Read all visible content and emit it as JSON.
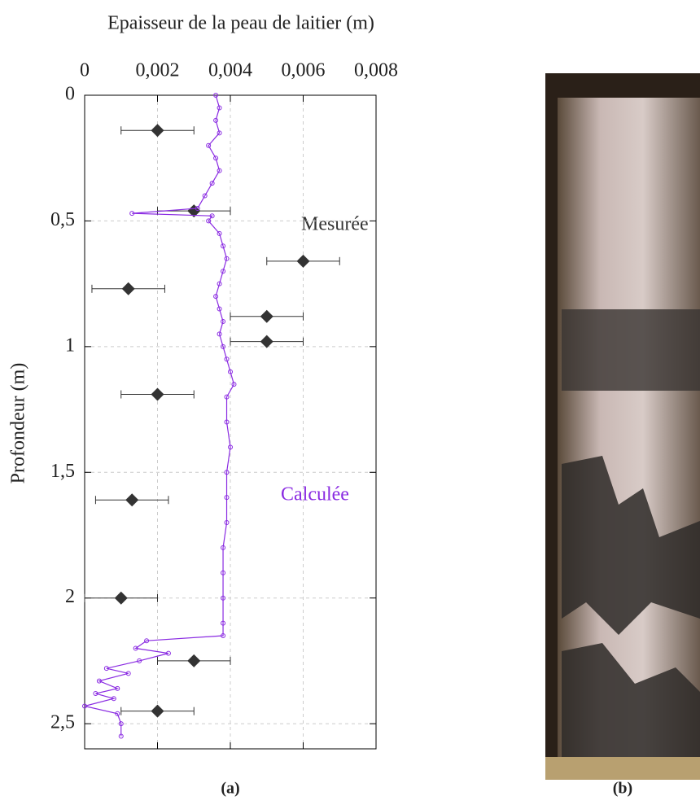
{
  "chart_data": {
    "type": "profile",
    "x_label": "Epaisseur de la peau de laitier (m)",
    "y_label": "Profondeur (m)",
    "xlim": [
      0,
      0.008
    ],
    "ylim": [
      0,
      2.6
    ],
    "xticks": [
      0,
      {
        "value": 0.002,
        "label": "0,002"
      },
      {
        "value": 0.004,
        "label": "0,004"
      },
      {
        "value": 0.006,
        "label": "0,006"
      },
      {
        "value": 0.008,
        "label": "0,008"
      }
    ],
    "yticks": [
      0,
      {
        "value": 0.5,
        "label": "0,5"
      },
      1,
      {
        "value": 1.5,
        "label": "1,5"
      },
      2,
      {
        "value": 2.5,
        "label": "2,5"
      }
    ],
    "grid": true,
    "y_inverted": true,
    "series": [
      {
        "name": "Mesurée",
        "color": "#333333",
        "style": "diamond",
        "x": [
          0.002,
          0.003,
          0.006,
          0.0012,
          0.005,
          0.005,
          0.002,
          0.0013,
          0.001,
          0.003,
          0.002
        ],
        "y": [
          0.14,
          0.46,
          0.66,
          0.77,
          0.88,
          0.98,
          1.19,
          1.61,
          2.0,
          2.25,
          2.45
        ],
        "errors": [
          0.001,
          0.001,
          0.001,
          0.001,
          0.001,
          0.001,
          0.001,
          0.001,
          0.001,
          0.001,
          0.001
        ]
      },
      {
        "name": "Calculée",
        "color": "#8a2be2",
        "style": "line",
        "x": [
          0.0036,
          0.0037,
          0.0036,
          0.0037,
          0.0034,
          0.0036,
          0.0037,
          0.0035,
          0.0033,
          0.0031,
          0.0013,
          0.0035,
          0.0034,
          0.0037,
          0.0038,
          0.0039,
          0.0038,
          0.0037,
          0.0036,
          0.0037,
          0.0038,
          0.0037,
          0.0038,
          0.0039,
          0.004,
          0.0041,
          0.0039,
          0.0039,
          0.004,
          0.0039,
          0.0039,
          0.0039,
          0.0038,
          0.0038,
          0.0038,
          0.0038,
          0.0038,
          0.0017,
          0.0014,
          0.0023,
          0.0015,
          0.0006,
          0.0012,
          0.0004,
          0.0009,
          0.0003,
          0.0008,
          0.0,
          0.0009,
          0.001,
          0.001
        ],
        "y": [
          0,
          0.05,
          0.1,
          0.15,
          0.2,
          0.25,
          0.3,
          0.35,
          0.4,
          0.45,
          0.47,
          0.48,
          0.5,
          0.55,
          0.6,
          0.65,
          0.7,
          0.75,
          0.8,
          0.85,
          0.9,
          0.95,
          1.0,
          1.05,
          1.1,
          1.15,
          1.2,
          1.3,
          1.4,
          1.5,
          1.6,
          1.7,
          1.8,
          1.9,
          2.0,
          2.1,
          2.15,
          2.17,
          2.2,
          2.22,
          2.25,
          2.28,
          2.3,
          2.33,
          2.36,
          2.38,
          2.4,
          2.43,
          2.46,
          2.5,
          2.55
        ]
      }
    ]
  },
  "captions": [
    "(a)",
    "(b)"
  ]
}
